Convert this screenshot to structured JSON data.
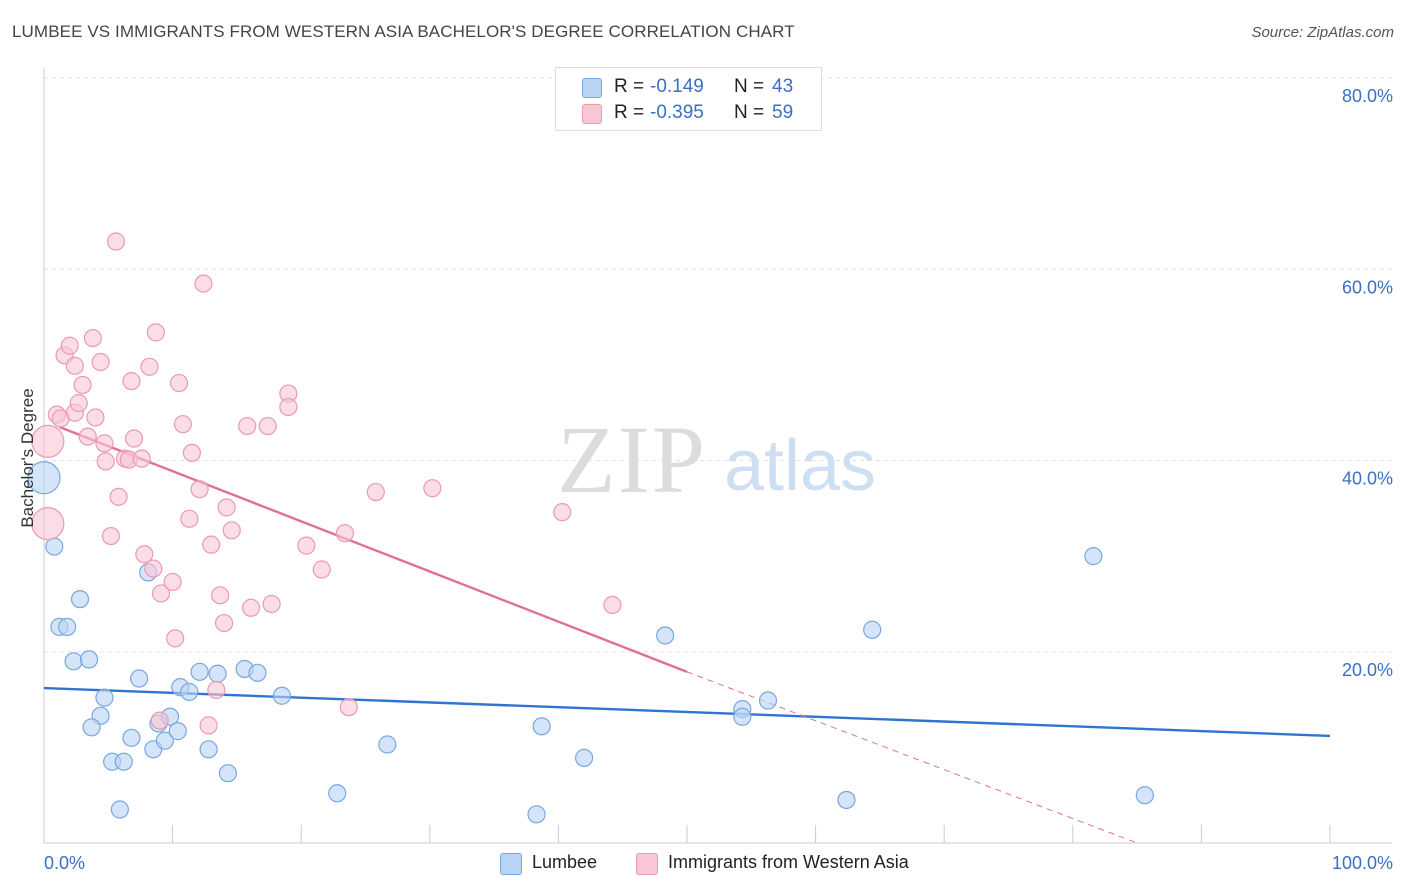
{
  "header": {
    "title": "LUMBEE VS IMMIGRANTS FROM WESTERN ASIA BACHELOR'S DEGREE CORRELATION CHART",
    "source": "Source: ZipAtlas.com"
  },
  "watermark": {
    "zip": "ZIP",
    "atlas": "atlas"
  },
  "stats_legend": {
    "rows": [
      {
        "r_label": "R =",
        "r_value": "-0.149",
        "n_label": "N =",
        "n_value": "43"
      },
      {
        "r_label": "R =",
        "r_value": "-0.395",
        "n_label": "N =",
        "n_value": "59"
      }
    ]
  },
  "bottom_legend": {
    "series1": "Lumbee",
    "series2": "Immigrants from Western Asia"
  },
  "colors": {
    "lumbee_fill": "#b9d3f5",
    "lumbee_stroke": "#7aa6e0",
    "lumbee_line": "#2f74d0",
    "imm_fill": "#f8c6d4",
    "imm_stroke": "#ea9ab2",
    "imm_line": "#e07097",
    "axis_text": "#3a6fc4",
    "grid": "#e3e3e3"
  },
  "chart_data": {
    "type": "scatter",
    "title": "LUMBEE VS IMMIGRANTS FROM WESTERN ASIA BACHELOR'S DEGREE CORRELATION CHART",
    "xlabel": "",
    "ylabel": "Bachelor's Degree",
    "xlim": [
      0,
      100
    ],
    "ylim": [
      0,
      80
    ],
    "x_tick_labels": [
      "0.0%",
      "100.0%"
    ],
    "y_ticks": [
      20,
      40,
      60,
      80
    ],
    "y_tick_labels": [
      "20.0%",
      "40.0%",
      "60.0%",
      "80.0%"
    ],
    "grid": true,
    "legend_position": "top-center",
    "series": [
      {
        "name": "Lumbee",
        "r": -0.149,
        "n": 43,
        "trend": {
          "x": [
            0,
            100
          ],
          "y": [
            16.2,
            11.2
          ]
        },
        "points": [
          {
            "x": 0,
            "y": 38.2,
            "s": "l"
          },
          {
            "x": 0.8,
            "y": 31.0
          },
          {
            "x": 2.8,
            "y": 25.5
          },
          {
            "x": 1.2,
            "y": 22.6
          },
          {
            "x": 1.8,
            "y": 22.6
          },
          {
            "x": 2.3,
            "y": 19.0
          },
          {
            "x": 3.5,
            "y": 19.2
          },
          {
            "x": 4.7,
            "y": 15.2
          },
          {
            "x": 4.4,
            "y": 13.3
          },
          {
            "x": 3.7,
            "y": 12.1
          },
          {
            "x": 6.8,
            "y": 11.0
          },
          {
            "x": 5.3,
            "y": 8.5
          },
          {
            "x": 6.2,
            "y": 8.5
          },
          {
            "x": 5.9,
            "y": 3.5
          },
          {
            "x": 7.4,
            "y": 17.2
          },
          {
            "x": 8.1,
            "y": 28.3
          },
          {
            "x": 8.5,
            "y": 9.8
          },
          {
            "x": 8.9,
            "y": 12.5
          },
          {
            "x": 9.4,
            "y": 10.7
          },
          {
            "x": 9.8,
            "y": 13.2
          },
          {
            "x": 10.4,
            "y": 11.7
          },
          {
            "x": 10.6,
            "y": 16.3
          },
          {
            "x": 11.3,
            "y": 15.8
          },
          {
            "x": 12.1,
            "y": 17.9
          },
          {
            "x": 12.8,
            "y": 9.8
          },
          {
            "x": 13.5,
            "y": 17.7
          },
          {
            "x": 14.3,
            "y": 7.3
          },
          {
            "x": 15.6,
            "y": 18.2
          },
          {
            "x": 16.6,
            "y": 17.8
          },
          {
            "x": 18.5,
            "y": 15.4
          },
          {
            "x": 22.8,
            "y": 5.2
          },
          {
            "x": 26.7,
            "y": 10.3
          },
          {
            "x": 38.3,
            "y": 3.0
          },
          {
            "x": 38.7,
            "y": 12.2
          },
          {
            "x": 42.0,
            "y": 8.9
          },
          {
            "x": 48.3,
            "y": 21.7
          },
          {
            "x": 54.3,
            "y": 14.0
          },
          {
            "x": 54.3,
            "y": 13.2
          },
          {
            "x": 56.3,
            "y": 14.9
          },
          {
            "x": 62.4,
            "y": 4.5
          },
          {
            "x": 64.4,
            "y": 22.3
          },
          {
            "x": 81.6,
            "y": 30.0
          },
          {
            "x": 85.6,
            "y": 5.0
          }
        ]
      },
      {
        "name": "Immigrants from Western Asia",
        "r": -0.395,
        "n": 59,
        "trend": {
          "x": [
            1.2,
            50.0
          ],
          "y": [
            43.5,
            17.9
          ]
        },
        "trend_dashed": {
          "x": [
            50.0,
            85.0
          ],
          "y": [
            17.9,
            0.0
          ]
        },
        "points": [
          {
            "x": 0.3,
            "y": 42.0,
            "s": "l"
          },
          {
            "x": 0.3,
            "y": 33.4,
            "s": "l"
          },
          {
            "x": 1.0,
            "y": 44.8
          },
          {
            "x": 1.3,
            "y": 44.4
          },
          {
            "x": 1.6,
            "y": 51.0
          },
          {
            "x": 2.0,
            "y": 52.0
          },
          {
            "x": 2.4,
            "y": 45.0
          },
          {
            "x": 2.4,
            "y": 49.9
          },
          {
            "x": 2.7,
            "y": 46.0
          },
          {
            "x": 3.0,
            "y": 47.9
          },
          {
            "x": 3.4,
            "y": 42.5
          },
          {
            "x": 3.8,
            "y": 52.8
          },
          {
            "x": 4.0,
            "y": 44.5
          },
          {
            "x": 4.4,
            "y": 50.3
          },
          {
            "x": 4.7,
            "y": 41.8
          },
          {
            "x": 4.8,
            "y": 39.9
          },
          {
            "x": 5.2,
            "y": 32.1
          },
          {
            "x": 5.6,
            "y": 62.9
          },
          {
            "x": 5.8,
            "y": 36.2
          },
          {
            "x": 6.3,
            "y": 40.2
          },
          {
            "x": 6.6,
            "y": 40.1
          },
          {
            "x": 6.8,
            "y": 48.3
          },
          {
            "x": 7.0,
            "y": 42.3
          },
          {
            "x": 7.6,
            "y": 40.2
          },
          {
            "x": 7.8,
            "y": 30.2
          },
          {
            "x": 8.2,
            "y": 49.8
          },
          {
            "x": 8.5,
            "y": 28.7
          },
          {
            "x": 8.7,
            "y": 53.4
          },
          {
            "x": 9.0,
            "y": 12.8
          },
          {
            "x": 9.1,
            "y": 26.1
          },
          {
            "x": 10.0,
            "y": 27.3
          },
          {
            "x": 10.2,
            "y": 21.4
          },
          {
            "x": 10.5,
            "y": 48.1
          },
          {
            "x": 10.8,
            "y": 43.8
          },
          {
            "x": 11.3,
            "y": 33.9
          },
          {
            "x": 11.5,
            "y": 40.8
          },
          {
            "x": 12.1,
            "y": 37.0
          },
          {
            "x": 12.4,
            "y": 58.5
          },
          {
            "x": 12.8,
            "y": 12.3
          },
          {
            "x": 13.0,
            "y": 31.2
          },
          {
            "x": 13.4,
            "y": 16.0
          },
          {
            "x": 13.7,
            "y": 25.9
          },
          {
            "x": 14.0,
            "y": 23.0
          },
          {
            "x": 14.2,
            "y": 35.1
          },
          {
            "x": 14.6,
            "y": 32.7
          },
          {
            "x": 15.8,
            "y": 43.6
          },
          {
            "x": 16.1,
            "y": 24.6
          },
          {
            "x": 17.4,
            "y": 43.6
          },
          {
            "x": 17.7,
            "y": 25.0
          },
          {
            "x": 19.0,
            "y": 47.0
          },
          {
            "x": 19.0,
            "y": 45.6
          },
          {
            "x": 20.4,
            "y": 31.1
          },
          {
            "x": 21.6,
            "y": 28.6
          },
          {
            "x": 23.4,
            "y": 32.4
          },
          {
            "x": 23.7,
            "y": 14.2
          },
          {
            "x": 25.8,
            "y": 36.7
          },
          {
            "x": 30.2,
            "y": 37.1
          },
          {
            "x": 40.3,
            "y": 34.6
          },
          {
            "x": 44.2,
            "y": 24.9
          }
        ]
      }
    ]
  }
}
